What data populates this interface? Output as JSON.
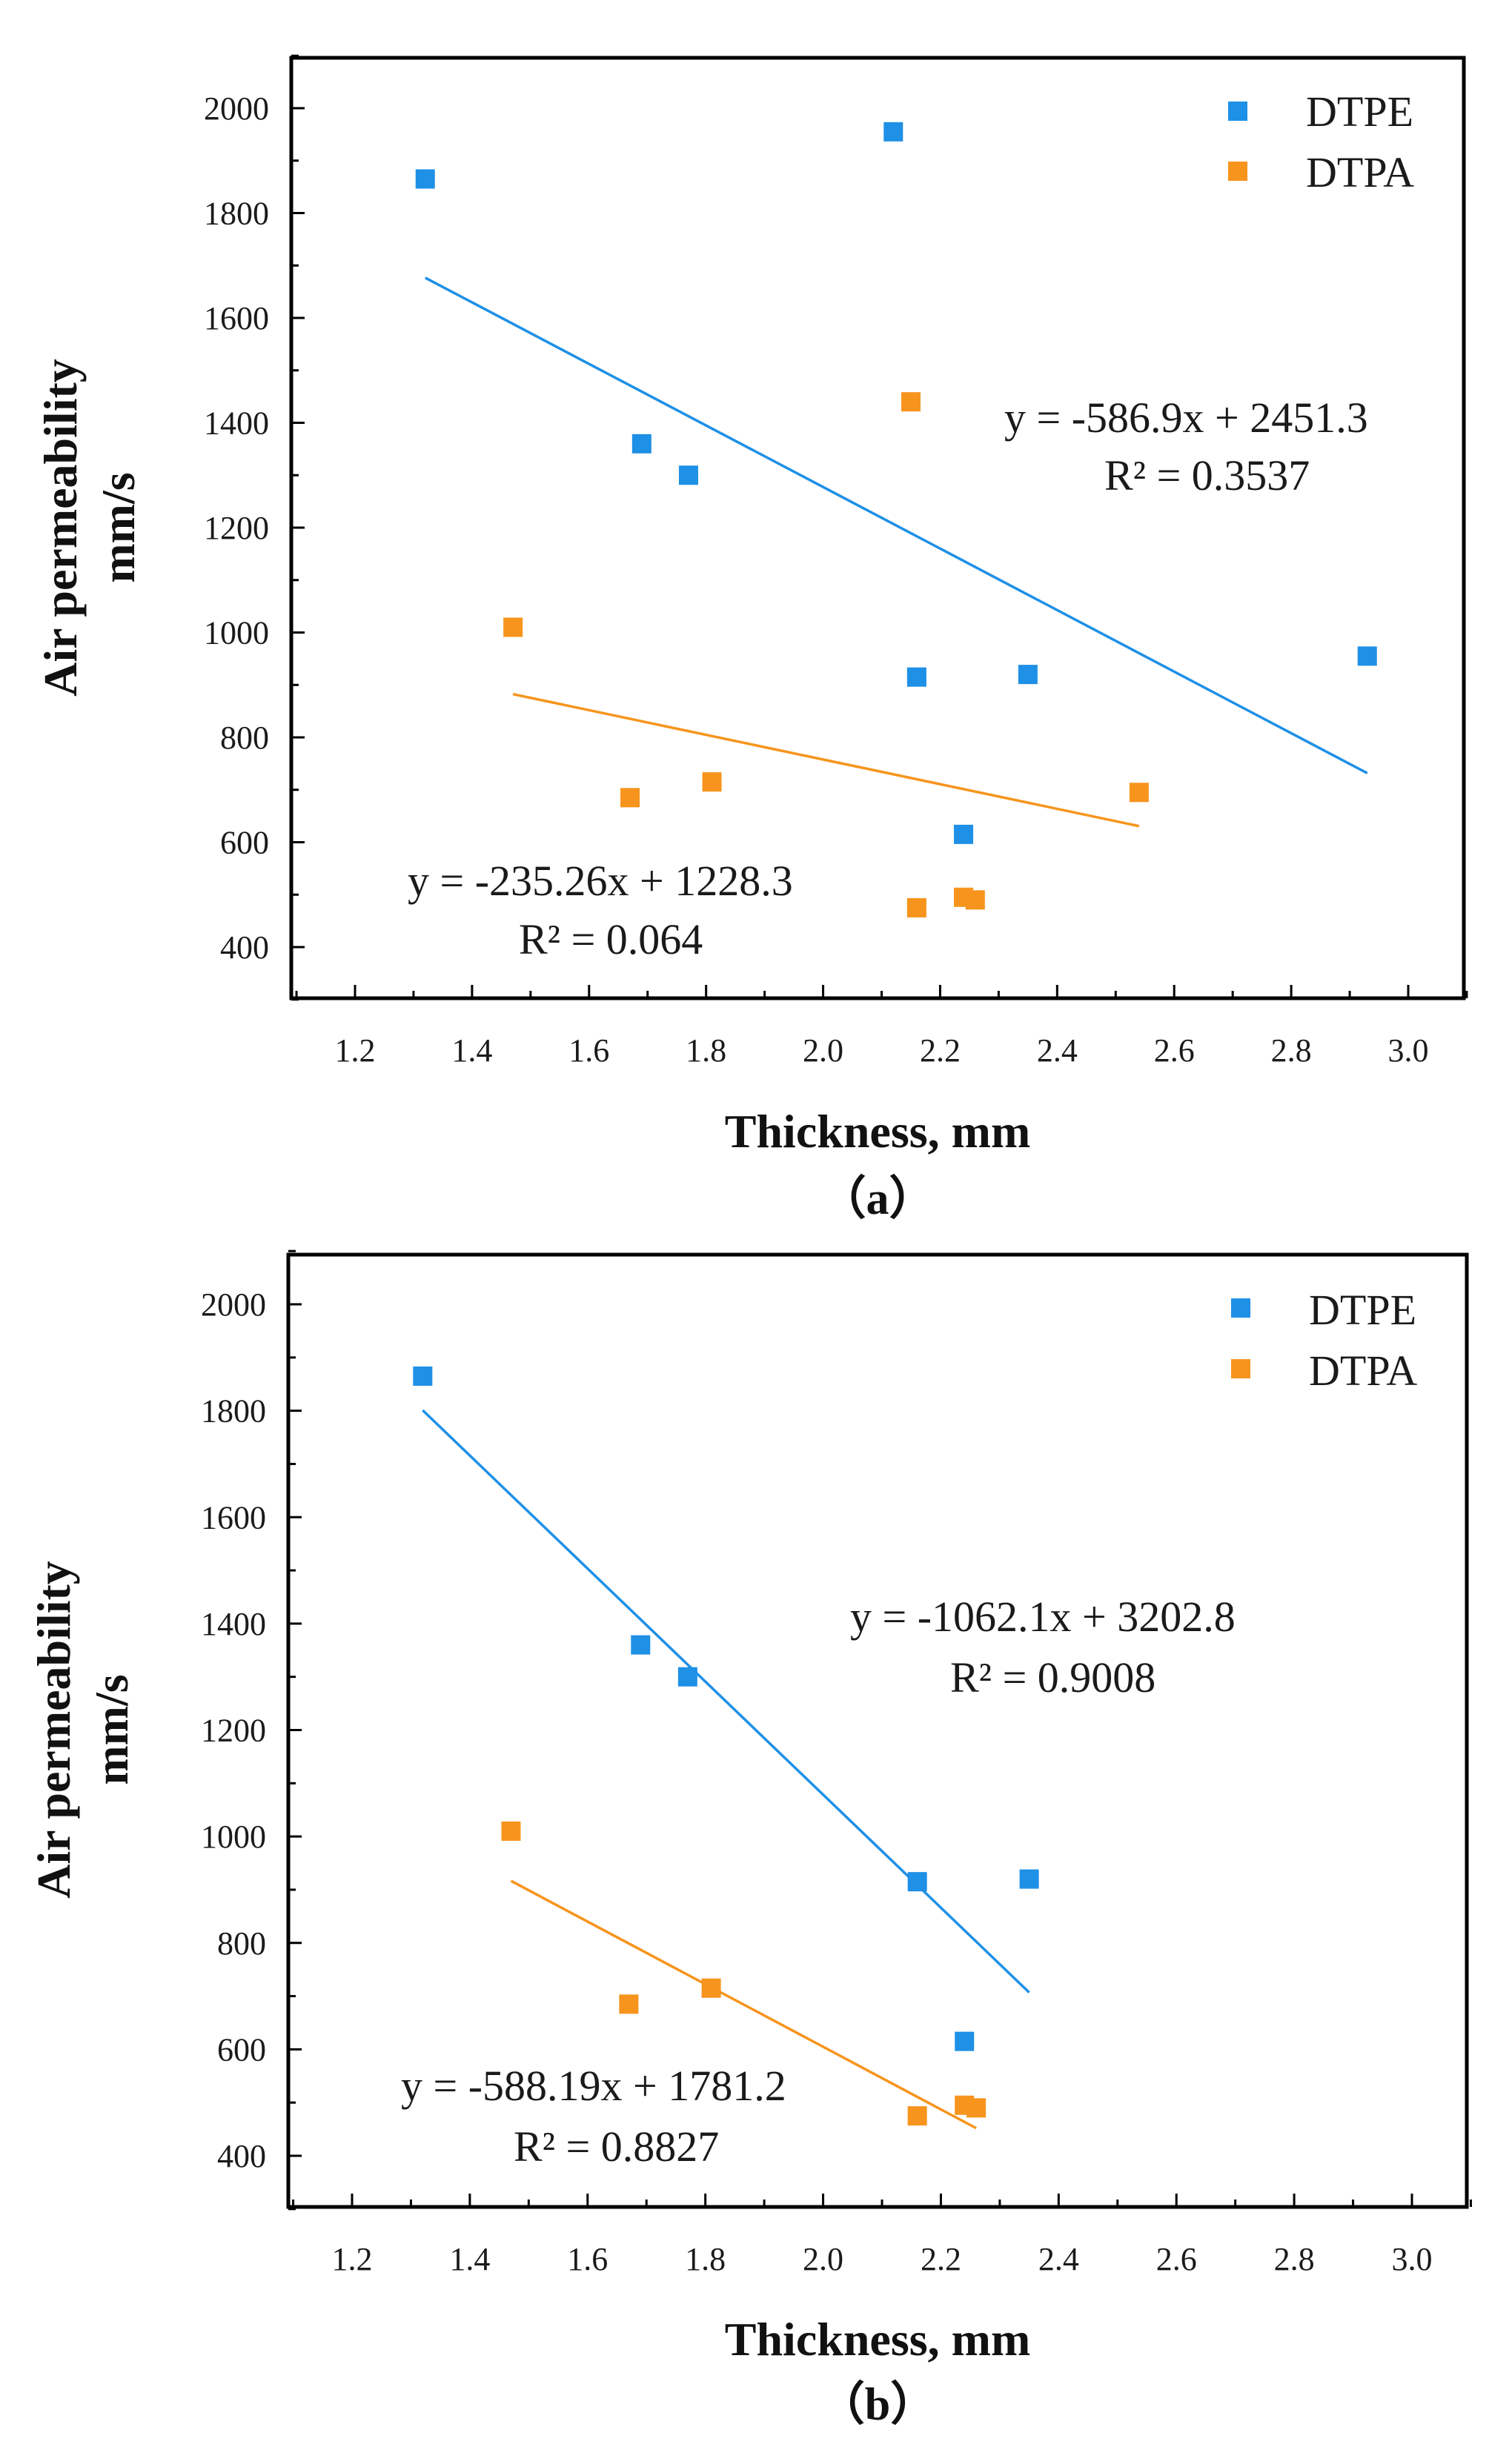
{
  "chart_data": [
    {
      "type": "scatter",
      "panel_label": "（a）",
      "xlabel": "Thickness, mm",
      "ylabel": "Air permeability",
      "ylabel_unit": "mm/s",
      "xlim": [
        1.1,
        3.1
      ],
      "ylim": [
        300,
        2100
      ],
      "xticks": [
        "1.2",
        "1.4",
        "1.6",
        "1.8",
        "2.0",
        "2.2",
        "2.4",
        "2.6",
        "2.8",
        "3.0"
      ],
      "yticks": [
        "400",
        "600",
        "800",
        "1000",
        "1200",
        "1400",
        "1600",
        "1800",
        "2000"
      ],
      "legend_position": "top-right",
      "series": [
        {
          "name": "DTPE",
          "color": "#1E90E6",
          "points": [
            [
              1.32,
              1865
            ],
            [
              1.69,
              1360
            ],
            [
              1.77,
              1300
            ],
            [
              2.12,
              1955
            ],
            [
              2.16,
              915
            ],
            [
              2.24,
              615
            ],
            [
              2.35,
              920
            ],
            [
              2.93,
              955
            ]
          ],
          "trendline": {
            "x_range": [
              1.32,
              2.93
            ],
            "slope": -586.9,
            "intercept": 2451.3
          },
          "equation": "y = -586.9x + 2451.3",
          "r2": "R² = 0.3537"
        },
        {
          "name": "DTPA",
          "color": "#F7941D",
          "points": [
            [
              1.47,
              1010
            ],
            [
              1.67,
              685
            ],
            [
              1.81,
              715
            ],
            [
              2.15,
              1440
            ],
            [
              2.16,
              475
            ],
            [
              2.24,
              495
            ],
            [
              2.26,
              490
            ],
            [
              2.54,
              695
            ]
          ],
          "trendline": {
            "x_range": [
              1.47,
              2.54
            ],
            "slope": -235.26,
            "intercept": 1228.3
          },
          "equation": "y = -235.26x + 1228.3",
          "r2": "R² = 0.064"
        }
      ]
    },
    {
      "type": "scatter",
      "panel_label": "（b）",
      "xlabel": "Thickness, mm",
      "ylabel": "Air permeability",
      "ylabel_unit": "mm/s",
      "xlim": [
        1.1,
        3.1
      ],
      "ylim": [
        300,
        2100
      ],
      "xticks": [
        "1.2",
        "1.4",
        "1.6",
        "1.8",
        "2.0",
        "2.2",
        "2.4",
        "2.6",
        "2.8",
        "3.0"
      ],
      "yticks": [
        "400",
        "600",
        "800",
        "1000",
        "1200",
        "1400",
        "1600",
        "1800",
        "2000"
      ],
      "legend_position": "top-right",
      "series": [
        {
          "name": "DTPE",
          "color": "#1E90E6",
          "points": [
            [
              1.32,
              1865
            ],
            [
              1.69,
              1360
            ],
            [
              1.77,
              1300
            ],
            [
              2.16,
              915
            ],
            [
              2.24,
              615
            ],
            [
              2.35,
              920
            ]
          ],
          "trendline": {
            "x_range": [
              1.32,
              2.35
            ],
            "slope": -1062.1,
            "intercept": 3202.8
          },
          "equation": "y = -1062.1x + 3202.8",
          "r2": "R² = 0.9008"
        },
        {
          "name": "DTPA",
          "color": "#F7941D",
          "points": [
            [
              1.47,
              1010
            ],
            [
              1.67,
              685
            ],
            [
              1.81,
              715
            ],
            [
              2.16,
              475
            ],
            [
              2.24,
              495
            ],
            [
              2.26,
              490
            ]
          ],
          "trendline": {
            "x_range": [
              1.47,
              2.26
            ],
            "slope": -588.19,
            "intercept": 1781.2
          },
          "equation": "y = -588.19x + 1781.2",
          "r2": "R² = 0.8827"
        }
      ]
    }
  ]
}
